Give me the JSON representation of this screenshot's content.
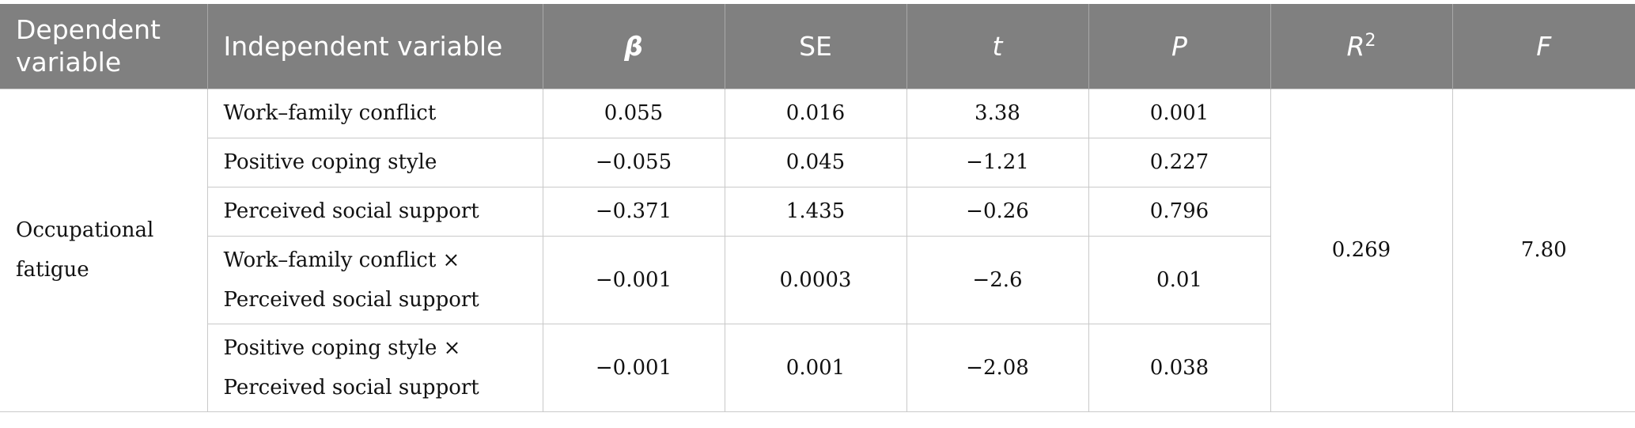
{
  "header": {
    "dependent_variable": "Dependent variable",
    "independent_variable": "Independent variable",
    "beta": "β",
    "se": "SE",
    "t": "t",
    "p": "P",
    "r2_base": "R",
    "r2_sup": "2",
    "f": "F"
  },
  "dependent_variable": "Occupational fatigue",
  "rows": [
    {
      "iv": "Work–family conflict",
      "beta": "0.055",
      "se": "0.016",
      "t": "3.38",
      "p": "0.001"
    },
    {
      "iv": "Positive coping style",
      "beta": "−0.055",
      "se": "0.045",
      "t": "−1.21",
      "p": "0.227"
    },
    {
      "iv": "Perceived social support",
      "beta": "−0.371",
      "se": "1.435",
      "t": "−0.26",
      "p": "0.796"
    },
    {
      "iv": "Work–family conflict × Perceived social support",
      "beta": "−0.001",
      "se": "0.0003",
      "t": "−2.6",
      "p": "0.01"
    },
    {
      "iv": "Positive coping style × Perceived social support",
      "beta": "−0.001",
      "se": "0.001",
      "t": "−2.08",
      "p": "0.038"
    }
  ],
  "r2_value": "0.269",
  "f_value": "7.80"
}
